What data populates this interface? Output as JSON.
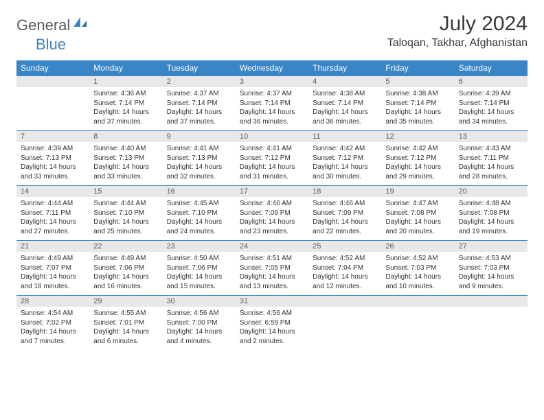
{
  "brand": {
    "part1": "General",
    "part2": "Blue"
  },
  "title": "July 2024",
  "location": "Taloqan, Takhar, Afghanistan",
  "colors": {
    "header_bg": "#3a85c6",
    "header_fg": "#ffffff",
    "daynum_bg": "#e8e8e8",
    "border": "#3a85c6",
    "text": "#333333"
  },
  "dayNames": [
    "Sunday",
    "Monday",
    "Tuesday",
    "Wednesday",
    "Thursday",
    "Friday",
    "Saturday"
  ],
  "weeks": [
    {
      "nums": [
        "",
        "1",
        "2",
        "3",
        "4",
        "5",
        "6"
      ],
      "cells": [
        {
          "sunrise": "",
          "sunset": "",
          "daylight1": "",
          "daylight2": ""
        },
        {
          "sunrise": "Sunrise: 4:36 AM",
          "sunset": "Sunset: 7:14 PM",
          "daylight1": "Daylight: 14 hours",
          "daylight2": "and 37 minutes."
        },
        {
          "sunrise": "Sunrise: 4:37 AM",
          "sunset": "Sunset: 7:14 PM",
          "daylight1": "Daylight: 14 hours",
          "daylight2": "and 37 minutes."
        },
        {
          "sunrise": "Sunrise: 4:37 AM",
          "sunset": "Sunset: 7:14 PM",
          "daylight1": "Daylight: 14 hours",
          "daylight2": "and 36 minutes."
        },
        {
          "sunrise": "Sunrise: 4:38 AM",
          "sunset": "Sunset: 7:14 PM",
          "daylight1": "Daylight: 14 hours",
          "daylight2": "and 36 minutes."
        },
        {
          "sunrise": "Sunrise: 4:38 AM",
          "sunset": "Sunset: 7:14 PM",
          "daylight1": "Daylight: 14 hours",
          "daylight2": "and 35 minutes."
        },
        {
          "sunrise": "Sunrise: 4:39 AM",
          "sunset": "Sunset: 7:14 PM",
          "daylight1": "Daylight: 14 hours",
          "daylight2": "and 34 minutes."
        }
      ]
    },
    {
      "nums": [
        "7",
        "8",
        "9",
        "10",
        "11",
        "12",
        "13"
      ],
      "cells": [
        {
          "sunrise": "Sunrise: 4:39 AM",
          "sunset": "Sunset: 7:13 PM",
          "daylight1": "Daylight: 14 hours",
          "daylight2": "and 33 minutes."
        },
        {
          "sunrise": "Sunrise: 4:40 AM",
          "sunset": "Sunset: 7:13 PM",
          "daylight1": "Daylight: 14 hours",
          "daylight2": "and 33 minutes."
        },
        {
          "sunrise": "Sunrise: 4:41 AM",
          "sunset": "Sunset: 7:13 PM",
          "daylight1": "Daylight: 14 hours",
          "daylight2": "and 32 minutes."
        },
        {
          "sunrise": "Sunrise: 4:41 AM",
          "sunset": "Sunset: 7:12 PM",
          "daylight1": "Daylight: 14 hours",
          "daylight2": "and 31 minutes."
        },
        {
          "sunrise": "Sunrise: 4:42 AM",
          "sunset": "Sunset: 7:12 PM",
          "daylight1": "Daylight: 14 hours",
          "daylight2": "and 30 minutes."
        },
        {
          "sunrise": "Sunrise: 4:42 AM",
          "sunset": "Sunset: 7:12 PM",
          "daylight1": "Daylight: 14 hours",
          "daylight2": "and 29 minutes."
        },
        {
          "sunrise": "Sunrise: 4:43 AM",
          "sunset": "Sunset: 7:11 PM",
          "daylight1": "Daylight: 14 hours",
          "daylight2": "and 28 minutes."
        }
      ]
    },
    {
      "nums": [
        "14",
        "15",
        "16",
        "17",
        "18",
        "19",
        "20"
      ],
      "cells": [
        {
          "sunrise": "Sunrise: 4:44 AM",
          "sunset": "Sunset: 7:11 PM",
          "daylight1": "Daylight: 14 hours",
          "daylight2": "and 27 minutes."
        },
        {
          "sunrise": "Sunrise: 4:44 AM",
          "sunset": "Sunset: 7:10 PM",
          "daylight1": "Daylight: 14 hours",
          "daylight2": "and 25 minutes."
        },
        {
          "sunrise": "Sunrise: 4:45 AM",
          "sunset": "Sunset: 7:10 PM",
          "daylight1": "Daylight: 14 hours",
          "daylight2": "and 24 minutes."
        },
        {
          "sunrise": "Sunrise: 4:46 AM",
          "sunset": "Sunset: 7:09 PM",
          "daylight1": "Daylight: 14 hours",
          "daylight2": "and 23 minutes."
        },
        {
          "sunrise": "Sunrise: 4:46 AM",
          "sunset": "Sunset: 7:09 PM",
          "daylight1": "Daylight: 14 hours",
          "daylight2": "and 22 minutes."
        },
        {
          "sunrise": "Sunrise: 4:47 AM",
          "sunset": "Sunset: 7:08 PM",
          "daylight1": "Daylight: 14 hours",
          "daylight2": "and 20 minutes."
        },
        {
          "sunrise": "Sunrise: 4:48 AM",
          "sunset": "Sunset: 7:08 PM",
          "daylight1": "Daylight: 14 hours",
          "daylight2": "and 19 minutes."
        }
      ]
    },
    {
      "nums": [
        "21",
        "22",
        "23",
        "24",
        "25",
        "26",
        "27"
      ],
      "cells": [
        {
          "sunrise": "Sunrise: 4:49 AM",
          "sunset": "Sunset: 7:07 PM",
          "daylight1": "Daylight: 14 hours",
          "daylight2": "and 18 minutes."
        },
        {
          "sunrise": "Sunrise: 4:49 AM",
          "sunset": "Sunset: 7:06 PM",
          "daylight1": "Daylight: 14 hours",
          "daylight2": "and 16 minutes."
        },
        {
          "sunrise": "Sunrise: 4:50 AM",
          "sunset": "Sunset: 7:06 PM",
          "daylight1": "Daylight: 14 hours",
          "daylight2": "and 15 minutes."
        },
        {
          "sunrise": "Sunrise: 4:51 AM",
          "sunset": "Sunset: 7:05 PM",
          "daylight1": "Daylight: 14 hours",
          "daylight2": "and 13 minutes."
        },
        {
          "sunrise": "Sunrise: 4:52 AM",
          "sunset": "Sunset: 7:04 PM",
          "daylight1": "Daylight: 14 hours",
          "daylight2": "and 12 minutes."
        },
        {
          "sunrise": "Sunrise: 4:52 AM",
          "sunset": "Sunset: 7:03 PM",
          "daylight1": "Daylight: 14 hours",
          "daylight2": "and 10 minutes."
        },
        {
          "sunrise": "Sunrise: 4:53 AM",
          "sunset": "Sunset: 7:03 PM",
          "daylight1": "Daylight: 14 hours",
          "daylight2": "and 9 minutes."
        }
      ]
    },
    {
      "nums": [
        "28",
        "29",
        "30",
        "31",
        "",
        "",
        ""
      ],
      "cells": [
        {
          "sunrise": "Sunrise: 4:54 AM",
          "sunset": "Sunset: 7:02 PM",
          "daylight1": "Daylight: 14 hours",
          "daylight2": "and 7 minutes."
        },
        {
          "sunrise": "Sunrise: 4:55 AM",
          "sunset": "Sunset: 7:01 PM",
          "daylight1": "Daylight: 14 hours",
          "daylight2": "and 6 minutes."
        },
        {
          "sunrise": "Sunrise: 4:56 AM",
          "sunset": "Sunset: 7:00 PM",
          "daylight1": "Daylight: 14 hours",
          "daylight2": "and 4 minutes."
        },
        {
          "sunrise": "Sunrise: 4:56 AM",
          "sunset": "Sunset: 6:59 PM",
          "daylight1": "Daylight: 14 hours",
          "daylight2": "and 2 minutes."
        },
        {
          "sunrise": "",
          "sunset": "",
          "daylight1": "",
          "daylight2": ""
        },
        {
          "sunrise": "",
          "sunset": "",
          "daylight1": "",
          "daylight2": ""
        },
        {
          "sunrise": "",
          "sunset": "",
          "daylight1": "",
          "daylight2": ""
        }
      ]
    }
  ]
}
